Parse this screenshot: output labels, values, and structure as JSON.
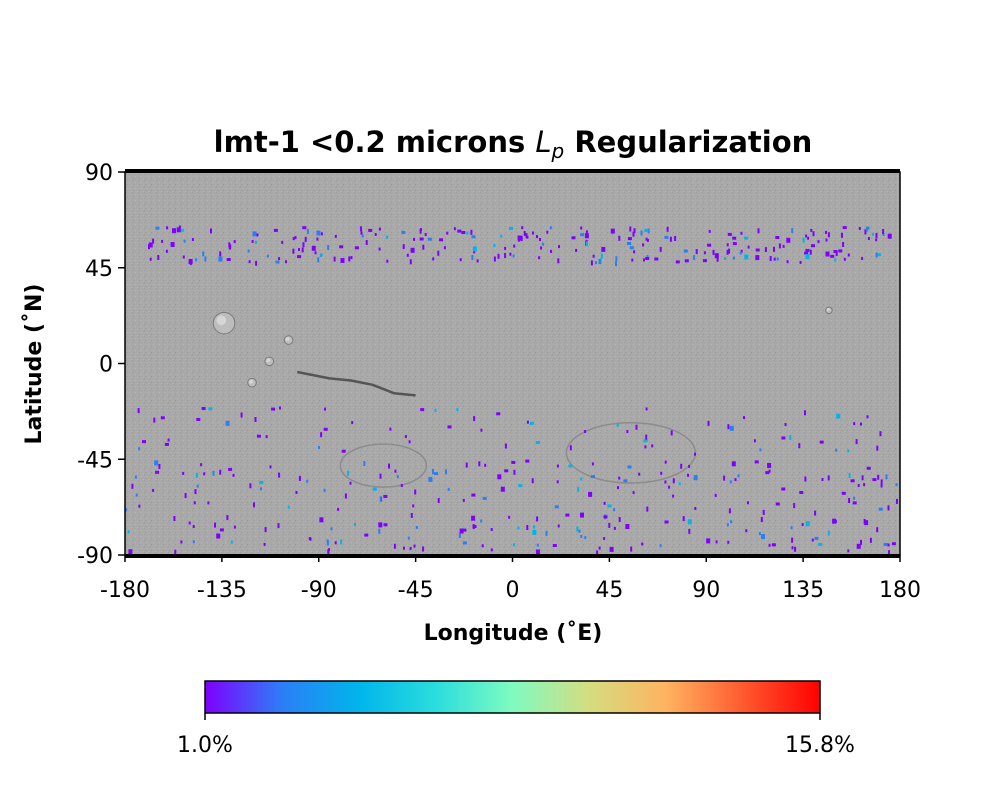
{
  "title": {
    "prefix": "lmt-1 <0.2 microns ",
    "lp_base": "L",
    "lp_sub": "p",
    "suffix": " Regularization"
  },
  "axes": {
    "xlabel": "Longitude (˚E)",
    "ylabel": "Latitude (˚N)",
    "xlim": [
      -180,
      180
    ],
    "ylim": [
      -90,
      90
    ],
    "x_ticks": [
      "-180",
      "-135",
      "-90",
      "-45",
      "0",
      "45",
      "90",
      "135",
      "180"
    ],
    "y_ticks": [
      "90",
      "45",
      "0",
      "-45",
      "-90"
    ]
  },
  "colorbar": {
    "min_label": "1.0%",
    "max_label": "15.8%",
    "colors": [
      "#7f00ff",
      "#2c7ef7",
      "#00b5eb",
      "#2adddd",
      "#7ffbc0",
      "#d4dd80",
      "#ffb360",
      "#ff5a2f",
      "#ff0000"
    ]
  },
  "map": {
    "basemap": "shaded-relief (grayscale)",
    "background_color": "#a8a8a8",
    "features": [
      {
        "name": "olympus-mons",
        "lon": -134,
        "lat": 19,
        "r": 5
      },
      {
        "name": "ascraeus-mons",
        "lon": -104,
        "lat": 11,
        "r": 2
      },
      {
        "name": "pavonis-mons",
        "lon": -113,
        "lat": 1,
        "r": 2
      },
      {
        "name": "arsia-mons",
        "lon": -121,
        "lat": -9,
        "r": 2
      },
      {
        "name": "elysium-mons",
        "lon": 147,
        "lat": 25,
        "r": 1.5
      }
    ]
  },
  "chart_data": {
    "type": "heatmap",
    "title": "lmt-1 <0.2 microns Lp Regularization",
    "xlabel": "Longitude (˚E)",
    "ylabel": "Latitude (˚N)",
    "xlim": [
      -180,
      180
    ],
    "ylim": [
      -90,
      90
    ],
    "colorbar_range_percent": [
      1.0,
      15.8
    ],
    "colormap": "rainbow",
    "bands": [
      {
        "lat_range": [
          48,
          65
        ],
        "lon_range": [
          -170,
          175
        ],
        "typical_value_percent": 1.5
      },
      {
        "lat_range": [
          -88,
          -45
        ],
        "lon_range": [
          -180,
          180
        ],
        "typical_value_percent": 1.5
      },
      {
        "lat_range": [
          -42,
          -20
        ],
        "lon_range": [
          -180,
          180
        ],
        "typical_value_percent": 1.2
      }
    ]
  }
}
